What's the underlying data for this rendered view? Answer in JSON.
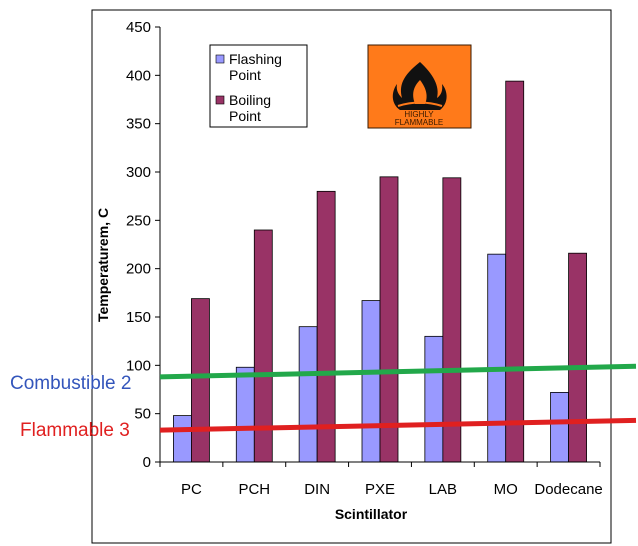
{
  "chart_data": {
    "type": "bar",
    "categories": [
      "PC",
      "PCH",
      "DIN",
      "PXE",
      "LAB",
      "MO",
      "Dodecane"
    ],
    "series": [
      {
        "name": "Flashing Point",
        "values": [
          48,
          98,
          140,
          167,
          130,
          215,
          72
        ],
        "color": "#9999ff"
      },
      {
        "name": "Boiling Point",
        "values": [
          169,
          240,
          280,
          295,
          294,
          394,
          216
        ],
        "color": "#993366"
      }
    ],
    "title": "",
    "xlabel": "Scintillator",
    "ylabel": "Temperaturem, C",
    "ylim": [
      0,
      450
    ],
    "yticks": [
      0,
      50,
      100,
      150,
      200,
      250,
      300,
      350,
      400,
      450
    ],
    "grid": false,
    "legend_position": "top-left",
    "legend_lines": [
      [
        "Flashing",
        "Point"
      ],
      [
        "Boiling",
        "Point"
      ]
    ],
    "reference_lines": [
      {
        "label": "Combustible 2",
        "y_start": 88,
        "y_end": 99,
        "color": "#22a84a",
        "label_color": "#3355bb"
      },
      {
        "label": "Flammable 3",
        "y_start": 33,
        "y_end": 43,
        "color": "#e02020",
        "label_color": "#e02020"
      }
    ]
  },
  "hazard_sign": {
    "line1": "HIGHLY",
    "line2": "FLAMMABLE",
    "background": "#ff7a1a",
    "icon": "flame-icon"
  }
}
